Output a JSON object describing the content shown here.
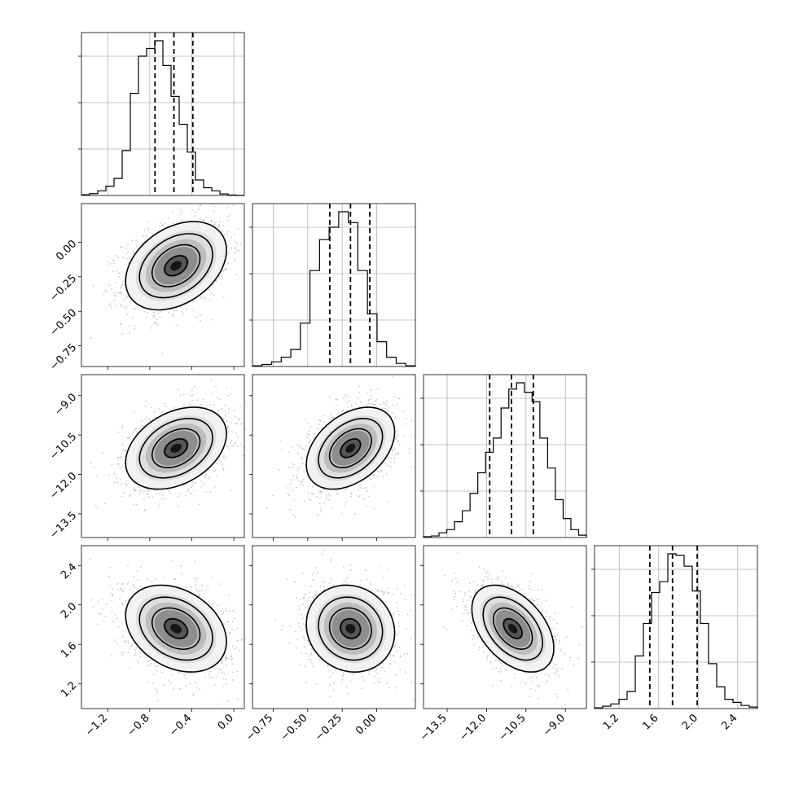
{
  "chart_data": {
    "type": "corner",
    "parameters": [
      {
        "index": 0,
        "range": [
          -1.45,
          0.1
        ],
        "quantiles": [
          -0.75,
          -0.57,
          -0.39
        ],
        "ticks": [
          {
            "v": -1.2,
            "label": "−1.2"
          },
          {
            "v": -0.8,
            "label": "−0.8"
          },
          {
            "v": -0.4,
            "label": "−0.4"
          },
          {
            "v": 0.0,
            "label": "0.0"
          }
        ],
        "histogram": [
          0.005,
          0.012,
          0.03,
          0.06,
          0.11,
          0.29,
          0.66,
          0.9,
          0.95,
          1.0,
          0.84,
          0.64,
          0.46,
          0.28,
          0.1,
          0.05,
          0.03,
          0.01,
          0.003,
          0.0
        ]
      },
      {
        "index": 1,
        "range": [
          -0.9,
          0.28
        ],
        "quantiles": [
          -0.34,
          -0.19,
          -0.05
        ],
        "ticks": [
          {
            "v": -0.75,
            "label": "−0.75"
          },
          {
            "v": -0.5,
            "label": "−0.50"
          },
          {
            "v": -0.25,
            "label": "−0.25"
          },
          {
            "v": 0.0,
            "label": "0.00"
          }
        ],
        "histogram": [
          0.005,
          0.013,
          0.03,
          0.06,
          0.11,
          0.28,
          0.62,
          0.82,
          0.9,
          1.0,
          0.93,
          0.62,
          0.34,
          0.16,
          0.06,
          0.02,
          0.005
        ]
      },
      {
        "index": 2,
        "range": [
          -14.4,
          -8.2
        ],
        "quantiles": [
          -11.88,
          -11.05,
          -10.22
        ],
        "ticks": [
          {
            "v": -13.5,
            "label": "−13.5"
          },
          {
            "v": -12.0,
            "label": "−12.0"
          },
          {
            "v": -10.5,
            "label": "−10.5"
          },
          {
            "v": -9.0,
            "label": "−9.0"
          }
        ],
        "histogram": [
          0.005,
          0.01,
          0.03,
          0.05,
          0.1,
          0.17,
          0.28,
          0.41,
          0.54,
          0.63,
          0.82,
          0.94,
          0.98,
          0.92,
          0.86,
          0.63,
          0.44,
          0.24,
          0.12,
          0.05,
          0.015
        ]
      },
      {
        "index": 3,
        "range": [
          0.95,
          2.6
        ],
        "quantiles": [
          1.51,
          1.74,
          1.99
        ],
        "ticks": [
          {
            "v": 1.2,
            "label": "1.2"
          },
          {
            "v": 1.6,
            "label": "1.6"
          },
          {
            "v": 2.0,
            "label": "2.0"
          },
          {
            "v": 2.4,
            "label": "2.4"
          }
        ],
        "histogram": [
          0.005,
          0.015,
          0.03,
          0.06,
          0.11,
          0.34,
          0.55,
          0.75,
          0.82,
          1.0,
          0.99,
          0.92,
          0.76,
          0.55,
          0.29,
          0.14,
          0.06,
          0.04,
          0.02,
          0.01
        ]
      }
    ],
    "pairs": [
      {
        "x": 0,
        "y": 1,
        "mean": [
          -0.55,
          -0.17
        ],
        "sd": [
          0.24,
          0.16
        ],
        "rho": 0.35
      },
      {
        "x": 0,
        "y": 2,
        "mean": [
          -0.55,
          -11.0
        ],
        "sd": [
          0.24,
          0.78
        ],
        "rho": 0.35
      },
      {
        "x": 1,
        "y": 2,
        "mean": [
          -0.19,
          -11.0
        ],
        "sd": [
          0.16,
          0.78
        ],
        "rho": 0.4
      },
      {
        "x": 0,
        "y": 3,
        "mean": [
          -0.55,
          1.76
        ],
        "sd": [
          0.24,
          0.22
        ],
        "rho": -0.3
      },
      {
        "x": 1,
        "y": 3,
        "mean": [
          -0.19,
          1.76
        ],
        "sd": [
          0.16,
          0.22
        ],
        "rho": -0.1
      },
      {
        "x": 2,
        "y": 3,
        "mean": [
          -11.0,
          1.76
        ],
        "sd": [
          0.78,
          0.22
        ],
        "rho": -0.45
      }
    ],
    "grid": true,
    "quantile_line_style": "dashed"
  }
}
